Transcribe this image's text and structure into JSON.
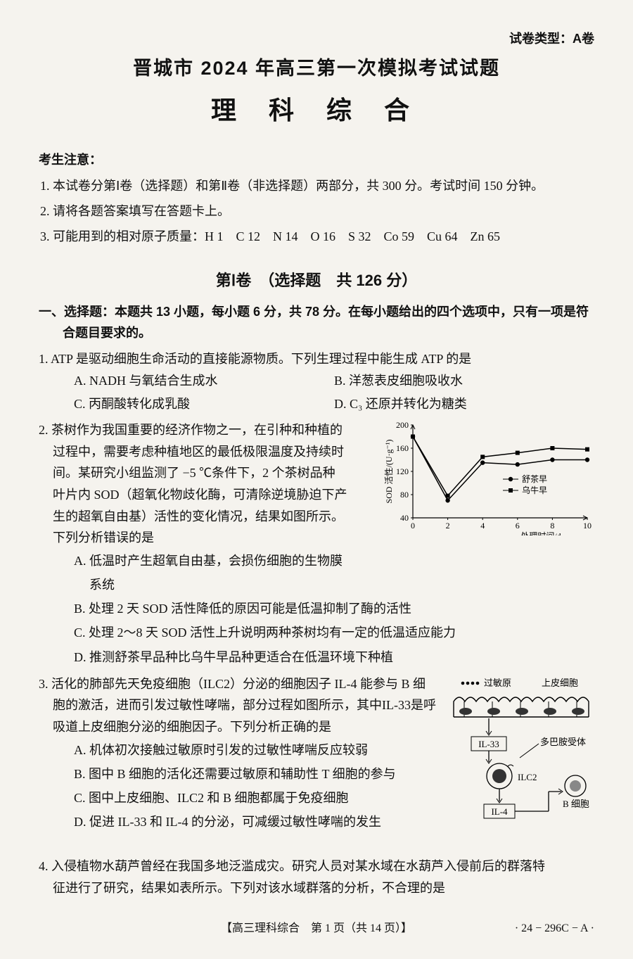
{
  "paper_type": "试卷类型：A卷",
  "title_main": "晋城市 2024 年高三第一次模拟考试试题",
  "title_sub": "理 科 综 合",
  "notice": {
    "heading": "考生注意：",
    "items": [
      "1. 本试卷分第Ⅰ卷（选择题）和第Ⅱ卷（非选择题）两部分，共 300 分。考试时间 150 分钟。",
      "2. 请将各题答案填写在答题卡上。",
      "3. 可能用到的相对原子质量：H 1　C 12　N 14　O 16　S 32　Co 59　Cu 64　Zn 65"
    ]
  },
  "section1_heading": "第Ⅰ卷　（选择题　共 126 分）",
  "section1_instruction_line1": "一、选择题：本题共 13 小题，每小题 6 分，共 78 分。在每小题给出的四个选项中，只有一项是符",
  "section1_instruction_line2": "合题目要求的。",
  "q1": {
    "stem": "1. ATP 是驱动细胞生命活动的直接能源物质。下列生理过程中能生成 ATP 的是",
    "A": "A. NADH 与氧结合生成水",
    "B": "B. 洋葱表皮细胞吸收水",
    "C": "C. 丙酮酸转化成乳酸",
    "D": "D. C₃ 还原并转化为糖类"
  },
  "q2": {
    "stem_line1": "2. 茶树作为我国重要的经济作物之一，在引种和种植的",
    "stem_line2": "过程中，需要考虑种植地区的最低极限温度及持续时",
    "stem_line3": "间。某研究小组监测了 −5 ℃条件下，2 个茶树品种",
    "stem_line4": "叶片内 SOD（超氧化物歧化酶，可清除逆境胁迫下产",
    "stem_line5": "生的超氧自由基）活性的变化情况，结果如图所示。",
    "stem_line6": "下列分析错误的是",
    "A_line1": "A. 低温时产生超氧自由基，会损伤细胞的生物膜",
    "A_line2": "系统",
    "B": "B. 处理 2 天 SOD 活性降低的原因可能是低温抑制了酶的活性",
    "C": "C. 处理 2～8 天 SOD 活性上升说明两种茶树均有一定的低温适应能力",
    "D": "D. 推测舒茶早品种比乌牛早品种更适合在低温环境下种植",
    "chart": {
      "type": "line",
      "x_values": [
        0,
        2,
        4,
        6,
        8,
        10
      ],
      "x_label": "处理时间/d",
      "y_label": "SOD 活性/(U·g⁻¹)",
      "ylim": [
        40,
        200
      ],
      "ytick_step": 40,
      "series": [
        {
          "name": "舒茶早",
          "marker": "circle",
          "color": "#000000",
          "values": [
            180,
            70,
            135,
            132,
            140,
            140
          ]
        },
        {
          "name": "乌牛早",
          "marker": "square",
          "color": "#000000",
          "values": [
            180,
            78,
            145,
            152,
            160,
            158
          ]
        }
      ],
      "font_size": 12,
      "grid_color": "#888888",
      "background_color": "#f5f3ee"
    }
  },
  "q3": {
    "stem_line1": "3. 活化的肺部先天免疫细胞（ILC2）分泌的细胞因子 IL-4 能参与 B 细",
    "stem_line2": "胞的激活，进而引发过敏性哮喘，部分过程如图所示，其中IL-33是呼",
    "stem_line3": "吸道上皮细胞分泌的细胞因子。下列分析正确的是",
    "A": "A. 机体初次接触过敏原时引发的过敏性哮喘反应较弱",
    "B": "B. 图中 B 细胞的活化还需要过敏原和辅助性 T 细胞的参与",
    "C": "C. 图中上皮细胞、ILC2 和 B 细胞都属于免疫细胞",
    "D": "D. 促进 IL-33 和 IL-4 的分泌，可减缓过敏性哮喘的发生",
    "diagram": {
      "label_allergen": "过敏原",
      "label_epithelial": "上皮细胞",
      "label_il33": "IL-33",
      "label_receptor": "多巴胺受体",
      "label_ilc2": "ILC2",
      "label_il4": "IL-4",
      "label_bcell": "B 细胞",
      "colors": {
        "box_border": "#000000",
        "cell_fill": "#333333",
        "bcell_fill": "#888888",
        "background": "#f5f3ee"
      }
    }
  },
  "q4": {
    "stem_line1": "4. 入侵植物水葫芦曾经在我国多地泛滥成灾。研究人员对某水域在水葫芦入侵前后的群落特",
    "stem_line2": "征进行了研究，结果如表所示。下列对该水域群落的分析，不合理的是"
  },
  "footer_main": "【高三理科综合　第 1 页（共 14 页）】",
  "footer_code": "· 24 − 296C − A ·"
}
